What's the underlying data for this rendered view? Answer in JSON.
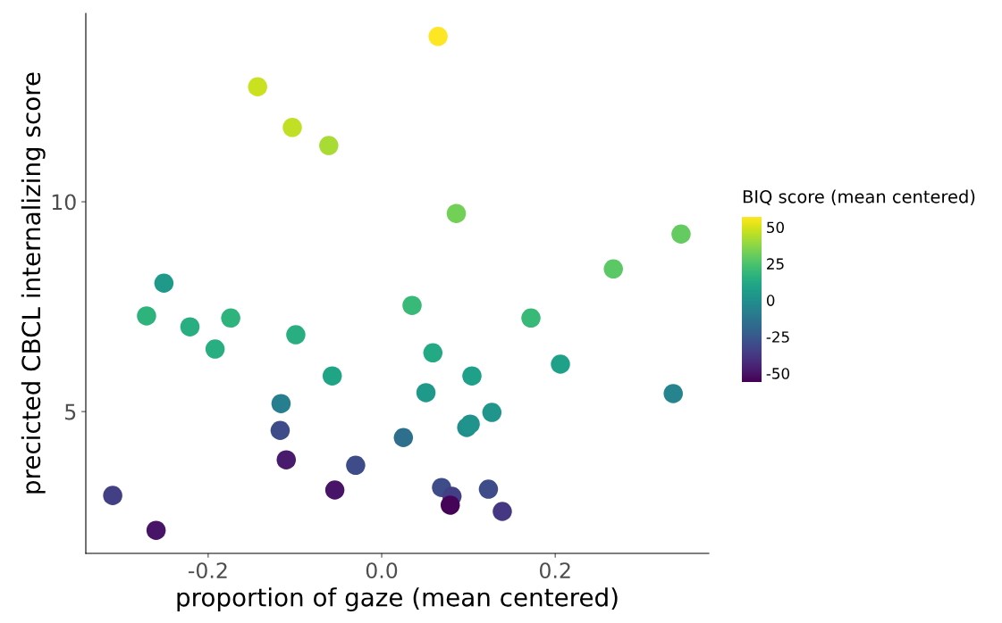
{
  "chart_data": {
    "type": "scatter",
    "xlabel": "proportion of gaze (mean centered)",
    "ylabel": "precicted CBCL internalizing score",
    "clabel": "BIQ score (mean centered)",
    "x": [
      0.065,
      -0.143,
      -0.103,
      -0.061,
      0.086,
      0.345,
      0.267,
      -0.251,
      -0.271,
      -0.174,
      -0.221,
      -0.192,
      -0.099,
      0.035,
      0.172,
      0.059,
      -0.057,
      0.104,
      0.206,
      0.336,
      0.051,
      -0.116,
      0.127,
      0.098,
      0.102,
      -0.117,
      0.025,
      -0.03,
      -0.11,
      -0.054,
      0.069,
      0.081,
      0.079,
      0.123,
      0.139,
      -0.31,
      -0.26
    ],
    "values": [
      13.94,
      12.74,
      11.77,
      11.34,
      9.72,
      9.23,
      8.4,
      8.06,
      7.28,
      7.23,
      7.02,
      6.49,
      6.83,
      7.53,
      7.23,
      6.4,
      5.85,
      5.85,
      6.13,
      5.43,
      5.45,
      5.19,
      4.98,
      4.62,
      4.7,
      4.55,
      4.38,
      3.72,
      3.85,
      3.13,
      3.19,
      2.98,
      2.77,
      3.15,
      2.62,
      3.0,
      2.17
    ],
    "cvalues": [
      57,
      48,
      46,
      42,
      33,
      30,
      28,
      5,
      17,
      17,
      15,
      15,
      15,
      20,
      20,
      12,
      10,
      8,
      8,
      -5,
      5,
      -8,
      3,
      0,
      2,
      -30,
      -15,
      -30,
      -48,
      -50,
      -30,
      -35,
      -55,
      -30,
      -38,
      -35,
      -50
    ],
    "xlim": [
      -0.341,
      0.377
    ],
    "ylim": [
      1.62,
      14.49
    ],
    "xticks": [
      -0.2,
      {
        "value": 0,
        "label": "0.0"
      },
      0.2
    ],
    "yticks": [
      5,
      10
    ],
    "clim": [
      -56,
      57
    ],
    "cticks": [
      -50,
      -25,
      0,
      25,
      50
    ],
    "marker": "circle",
    "grid": false
  }
}
